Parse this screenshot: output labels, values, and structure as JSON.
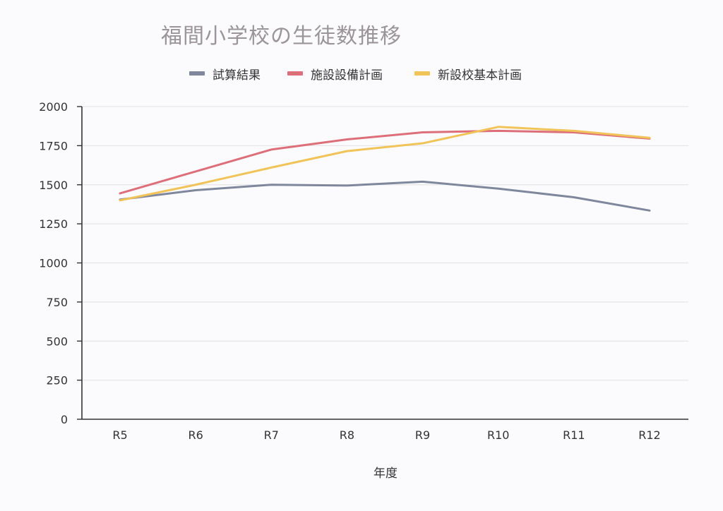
{
  "colors": {
    "series": [
      "#7f879c",
      "#dd6f7a",
      "#f1c45a"
    ],
    "grid": "#e6e6e8",
    "axis": "#333333",
    "title": "#9a9599"
  },
  "chart_data": {
    "type": "line",
    "title": "福間小学校の生徒数推移",
    "xlabel": "年度",
    "ylabel": "",
    "categories": [
      "R5",
      "R6",
      "R7",
      "R8",
      "R9",
      "R10",
      "R11",
      "R12"
    ],
    "ylim": [
      0,
      2000
    ],
    "yticks": [
      0,
      250,
      500,
      750,
      1000,
      1250,
      1500,
      1750,
      2000
    ],
    "grid": true,
    "legend_position": "top",
    "series": [
      {
        "name": "試算結果",
        "values": [
          1405,
          1465,
          1500,
          1495,
          1520,
          1475,
          1420,
          1335
        ]
      },
      {
        "name": "施設設備計画",
        "values": [
          1445,
          1585,
          1725,
          1790,
          1835,
          1845,
          1835,
          1795
        ]
      },
      {
        "name": "新設校基本計画",
        "values": [
          1400,
          1500,
          1610,
          1715,
          1765,
          1870,
          1845,
          1800
        ]
      }
    ]
  }
}
